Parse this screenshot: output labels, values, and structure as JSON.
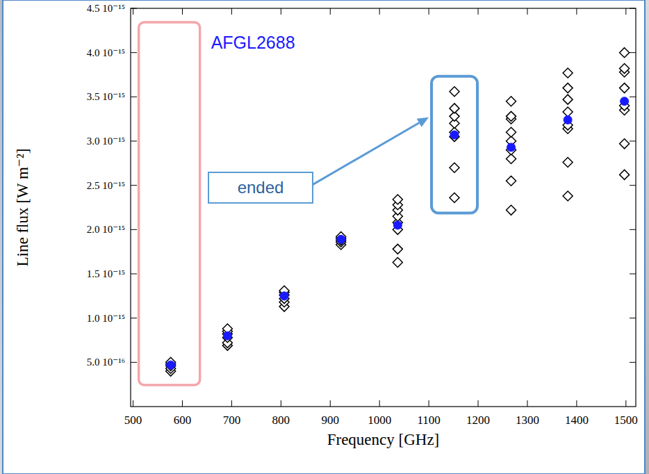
{
  "chart_data": {
    "type": "scatter",
    "title": "AFGL2688",
    "x_label": "Frequency [GHz]",
    "y_label": "Line flux [W m⁻²]",
    "annotations": [
      {
        "text": "ended"
      }
    ],
    "xlim": [
      495,
      1520
    ],
    "xticks": [
      500,
      600,
      700,
      800,
      900,
      1000,
      1100,
      1200,
      1300,
      1400,
      1500
    ],
    "ylim": [
      0,
      4.5e-15
    ],
    "yticks": [
      {
        "value": 5e-16,
        "label": "5.0 10⁻¹⁶"
      },
      {
        "value": 1e-15,
        "label": "1.0 10⁻¹⁵"
      },
      {
        "value": 1.5e-15,
        "label": "1.5 10⁻¹⁵"
      },
      {
        "value": 2e-15,
        "label": "2.0 10⁻¹⁵"
      },
      {
        "value": 2.5e-15,
        "label": "2.5 10⁻¹⁵"
      },
      {
        "value": 3e-15,
        "label": "3.0 10⁻¹⁵"
      },
      {
        "value": 3.5e-15,
        "label": "3.5 10⁻¹⁵"
      },
      {
        "value": 4e-15,
        "label": "4.0 10⁻¹⁵"
      },
      {
        "value": 4.5e-15,
        "label": "4.5 10⁻¹⁵"
      }
    ],
    "grid": false,
    "series": [
      {
        "marker": "diamond",
        "color": "#000000",
        "x": [
          576.3,
          576.3,
          576.3,
          576.3,
          576.3,
          691.5,
          691.5,
          691.5,
          691.5,
          691.5,
          691.5,
          806.7,
          806.7,
          806.7,
          806.7,
          806.7,
          806.7,
          921.8,
          921.8,
          921.8,
          921.8,
          921.8,
          1036.9,
          1036.9,
          1036.9,
          1036.9,
          1036.9,
          1036.9,
          1036.9,
          1036.9,
          1152.0,
          1152.0,
          1152.0,
          1152.0,
          1152.0,
          1152.0,
          1152.0,
          1152.0,
          1267.0,
          1267.0,
          1267.0,
          1267.0,
          1267.0,
          1267.0,
          1267.0,
          1267.0,
          1267.0,
          1382.0,
          1382.0,
          1382.0,
          1382.0,
          1382.0,
          1382.0,
          1382.0,
          1382.0,
          1496.9,
          1496.9,
          1496.9,
          1496.9,
          1496.9,
          1496.9,
          1496.9,
          1496.9
        ],
        "values": [
          4e-16,
          4.3e-16,
          4.6e-16,
          4.8e-16,
          5e-16,
          6.9e-16,
          7.2e-16,
          7.8e-16,
          8.2e-16,
          8.5e-16,
          8.8e-16,
          1.13e-15,
          1.18e-15,
          1.22e-15,
          1.26e-15,
          1.29e-15,
          1.31e-15,
          1.83e-15,
          1.86e-15,
          1.88e-15,
          1.9e-15,
          1.92e-15,
          1.63e-15,
          1.78e-15,
          2e-15,
          2.08e-15,
          2.15e-15,
          2.22e-15,
          2.28e-15,
          2.34e-15,
          2.36e-15,
          2.7e-15,
          3.05e-15,
          3.1e-15,
          3.2e-15,
          3.28e-15,
          3.37e-15,
          3.56e-15,
          2.22e-15,
          2.55e-15,
          2.8e-15,
          2.9e-15,
          3e-15,
          3.1e-15,
          3.25e-15,
          3.28e-15,
          3.45e-15,
          2.38e-15,
          2.76e-15,
          3.14e-15,
          3.18e-15,
          3.33e-15,
          3.47e-15,
          3.6e-15,
          3.77e-15,
          2.62e-15,
          2.97e-15,
          3.35e-15,
          3.4e-15,
          3.6e-15,
          3.78e-15,
          3.82e-15,
          4e-15
        ]
      },
      {
        "marker": "circle",
        "color": "#1a1aff",
        "x": [
          576.3,
          691.5,
          806.7,
          921.8,
          1036.9,
          1152.0,
          1267.0,
          1382.0,
          1496.9
        ],
        "values": [
          4.7e-16,
          8e-16,
          1.25e-15,
          1.89e-15,
          2.05e-15,
          3.07e-15,
          2.93e-15,
          3.24e-15,
          3.45e-15
        ]
      }
    ]
  }
}
